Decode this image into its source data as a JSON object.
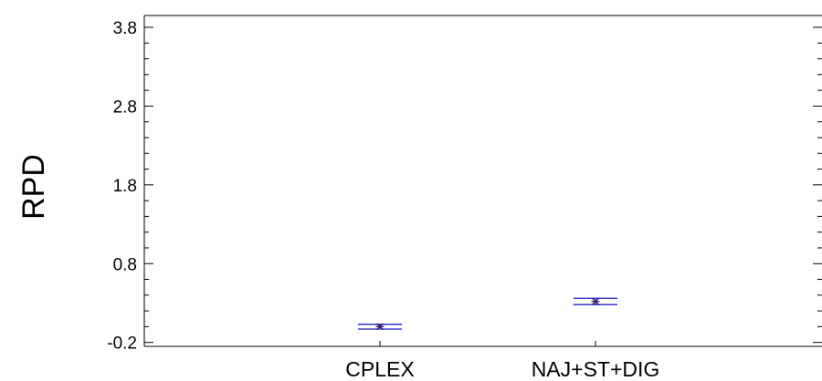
{
  "chart_data": {
    "type": "scatter",
    "title": "",
    "xlabel": "",
    "ylabel": "RPD",
    "categories": [
      "CPLEX",
      "NAJ+ST+DIG"
    ],
    "series": [
      {
        "mean": [
          0.0,
          0.32
        ],
        "lower": [
          -0.03,
          0.28
        ],
        "upper": [
          0.03,
          0.36
        ]
      }
    ],
    "ylim": [
      -0.25,
      3.95
    ],
    "yticks": [
      "-0.2",
      "0.8",
      "1.8",
      "2.8",
      "3.8"
    ],
    "ytick_values": [
      -0.2,
      0.8,
      1.8,
      2.8,
      3.8
    ],
    "minor_tick_step": 0.2,
    "grid": false,
    "colors": {
      "interval": "#2020c0",
      "marker": "#3a1f6e",
      "axis": "#000000"
    }
  }
}
